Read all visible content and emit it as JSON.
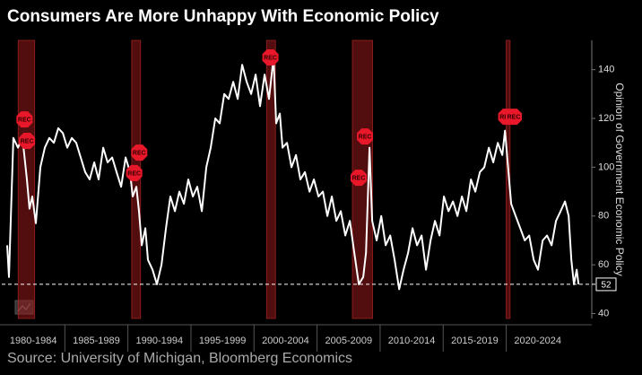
{
  "chart_data": {
    "type": "line",
    "title": "Consumers Are More Unhappy With Economic Policy",
    "y_axis_label": "Opinion of Government Economic Policy",
    "source": "Source: University of Michigan, Bloomberg Economics",
    "xlim": [
      1980,
      2026.5
    ],
    "ylim": [
      38,
      152
    ],
    "yticks": [
      40,
      60,
      80,
      100,
      120,
      140
    ],
    "xticks": [
      {
        "value": 1980,
        "label": "1980-1984"
      },
      {
        "value": 1985,
        "label": "1985-1989"
      },
      {
        "value": 1990,
        "label": "1990-1994"
      },
      {
        "value": 1995,
        "label": "1995-1999"
      },
      {
        "value": 2000,
        "label": "2000-2004"
      },
      {
        "value": 2005,
        "label": "2005-2009"
      },
      {
        "value": 2010,
        "label": "2010-2014"
      },
      {
        "value": 2015,
        "label": "2015-2019"
      },
      {
        "value": 2020,
        "label": "2020-2024"
      }
    ],
    "reference_line": 52,
    "recessions": [
      [
        1981.3,
        1982.6
      ],
      [
        1990.3,
        1991.0
      ],
      [
        2001.0,
        2001.7
      ],
      [
        2007.8,
        2009.4
      ],
      [
        2020.0,
        2020.3
      ]
    ],
    "annotations": [
      {
        "label": "REC",
        "x": 1981.8,
        "y": 119.6
      },
      {
        "label": "REC",
        "x": 1982.0,
        "y": 110.8
      },
      {
        "label": "REC",
        "x": 1990.9,
        "y": 106.0
      },
      {
        "label": "REC",
        "x": 1990.5,
        "y": 97.6
      },
      {
        "label": "REC",
        "x": 2001.3,
        "y": 145.0
      },
      {
        "label": "REC",
        "x": 2008.3,
        "y": 95.7
      },
      {
        "label": "REC",
        "x": 2008.8,
        "y": 112.6
      },
      {
        "label": "REC",
        "x": 2020.0,
        "y": 120.7
      },
      {
        "label": "REC",
        "x": 2020.6,
        "y": 120.7
      }
    ],
    "series": [
      {
        "color": "#ffffff",
        "x": [
          1980.43,
          1980.57,
          1980.92,
          1981.28,
          1981.64,
          1981.99,
          1982.2,
          1982.42,
          1982.7,
          1983.06,
          1983.41,
          1983.77,
          1984.13,
          1984.48,
          1984.84,
          1985.19,
          1985.55,
          1985.9,
          1986.26,
          1986.61,
          1986.97,
          1987.33,
          1987.68,
          1988.04,
          1988.39,
          1988.75,
          1989.1,
          1989.46,
          1989.82,
          1990.17,
          1990.38,
          1990.67,
          1990.88,
          1991.1,
          1991.38,
          1991.59,
          1991.95,
          1992.3,
          1992.66,
          1993.02,
          1993.37,
          1993.73,
          1994.08,
          1994.44,
          1994.79,
          1995.15,
          1995.5,
          1995.86,
          1996.22,
          1996.57,
          1996.93,
          1997.28,
          1997.64,
          1997.99,
          1998.35,
          1998.71,
          1999.06,
          1999.42,
          1999.77,
          2000.13,
          2000.48,
          2000.84,
          2001.19,
          2001.55,
          2001.76,
          2002.05,
          2002.26,
          2002.62,
          2002.97,
          2003.33,
          2003.68,
          2004.04,
          2004.4,
          2004.75,
          2005.11,
          2005.46,
          2005.82,
          2006.17,
          2006.53,
          2006.88,
          2007.24,
          2007.6,
          2007.95,
          2008.31,
          2008.66,
          2008.88,
          2009.16,
          2009.37,
          2009.73,
          2010.09,
          2010.44,
          2010.8,
          2011.15,
          2011.51,
          2011.86,
          2012.22,
          2012.57,
          2012.93,
          2013.29,
          2013.64,
          2014.0,
          2014.35,
          2014.71,
          2015.06,
          2015.42,
          2015.78,
          2016.13,
          2016.49,
          2016.84,
          2017.2,
          2017.55,
          2017.91,
          2018.26,
          2018.62,
          2018.97,
          2019.33,
          2019.69,
          2019.9,
          2020.18,
          2020.39,
          2020.75,
          2021.11,
          2021.47,
          2021.82,
          2022.18,
          2022.52,
          2022.89,
          2023.24,
          2023.6,
          2023.95,
          2024.31,
          2024.66,
          2024.95,
          2025.16,
          2025.37,
          2025.59,
          2025.73
        ],
        "values": [
          68,
          55,
          112,
          108,
          112,
          95,
          83,
          88,
          77,
          100,
          108,
          112,
          110,
          116,
          114,
          108,
          112,
          110,
          104,
          98,
          95,
          102,
          95,
          108,
          102,
          104,
          98,
          92,
          104,
          98,
          88,
          92,
          82,
          68,
          75,
          62,
          58,
          52,
          60,
          75,
          88,
          82,
          90,
          85,
          95,
          88,
          92,
          82,
          100,
          108,
          120,
          118,
          130,
          128,
          135,
          128,
          142,
          135,
          130,
          138,
          125,
          138,
          128,
          145,
          118,
          122,
          108,
          110,
          100,
          105,
          95,
          98,
          90,
          95,
          88,
          90,
          80,
          88,
          78,
          82,
          72,
          78,
          65,
          52,
          55,
          65,
          108,
          78,
          70,
          80,
          68,
          72,
          62,
          50,
          58,
          65,
          75,
          68,
          72,
          58,
          70,
          78,
          72,
          88,
          82,
          86,
          80,
          88,
          82,
          95,
          90,
          98,
          100,
          108,
          102,
          110,
          105,
          115,
          98,
          85,
          80,
          75,
          70,
          72,
          62,
          58,
          70,
          72,
          68,
          78,
          82,
          86,
          80,
          62,
          52,
          58,
          52
        ]
      }
    ]
  }
}
